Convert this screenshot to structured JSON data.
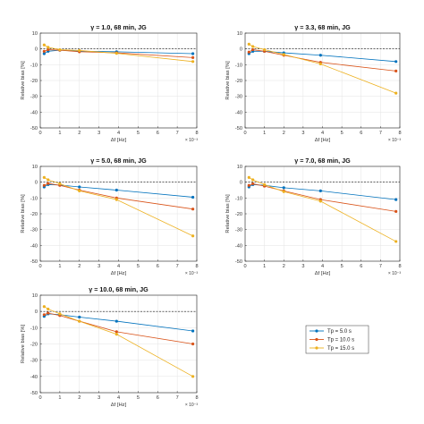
{
  "chart_data": [
    {
      "type": "line",
      "title": "γ = 1.0, 68 min, JG",
      "xlabel": "Δf [Hz]",
      "ylabel": "Relative bias [%]",
      "x_exponent_label": "× 10⁻³",
      "xlim": [
        0,
        8
      ],
      "ylim": [
        -50,
        10
      ],
      "xticks": [
        0,
        1,
        2,
        3,
        4,
        5,
        6,
        7,
        8
      ],
      "yticks": [
        10,
        0,
        -10,
        -20,
        -30,
        -40,
        -50
      ],
      "grid": true,
      "reference_line": 0,
      "x": [
        0.2,
        0.4,
        1.0,
        2.0,
        3.9,
        7.8
      ],
      "series": [
        {
          "name": "Tp = 5.0 s",
          "color": "#0072BD",
          "values": [
            -3.0,
            -1.5,
            -0.8,
            -1.5,
            -1.8,
            -3.0
          ]
        },
        {
          "name": "Tp = 10.0 s",
          "color": "#D95319",
          "values": [
            -1.5,
            -0.5,
            -0.8,
            -1.8,
            -2.5,
            -5.5
          ]
        },
        {
          "name": "Tp = 15.0 s",
          "color": "#EDB120",
          "values": [
            2.5,
            1.0,
            -0.5,
            -1.0,
            -2.8,
            -8.0
          ]
        }
      ]
    },
    {
      "type": "line",
      "title": "γ = 3.3, 68 min, JG",
      "xlabel": "Δf [Hz]",
      "ylabel": "Relative bias [%]",
      "x_exponent_label": "× 10⁻³",
      "xlim": [
        0,
        8
      ],
      "ylim": [
        -50,
        10
      ],
      "xticks": [
        0,
        1,
        2,
        3,
        4,
        5,
        6,
        7,
        8
      ],
      "yticks": [
        10,
        0,
        -10,
        -20,
        -30,
        -40,
        -50
      ],
      "grid": true,
      "reference_line": 0,
      "x": [
        0.2,
        0.4,
        1.0,
        2.0,
        3.9,
        7.8
      ],
      "series": [
        {
          "name": "Tp = 5.0 s",
          "color": "#0072BD",
          "values": [
            -3.0,
            -1.5,
            -1.5,
            -2.5,
            -4.0,
            -8.0
          ]
        },
        {
          "name": "Tp = 10.0 s",
          "color": "#D95319",
          "values": [
            -2.0,
            -0.5,
            -1.5,
            -4.0,
            -8.5,
            -14.0
          ]
        },
        {
          "name": "Tp = 15.0 s",
          "color": "#EDB120",
          "values": [
            3.0,
            1.5,
            -0.5,
            -3.5,
            -9.5,
            -28.0
          ]
        }
      ]
    },
    {
      "type": "line",
      "title": "γ = 5.0, 68 min, JG",
      "xlabel": "Δf [Hz]",
      "ylabel": "Relative bias [%]",
      "x_exponent_label": "× 10⁻³",
      "xlim": [
        0,
        8
      ],
      "ylim": [
        -50,
        10
      ],
      "xticks": [
        0,
        1,
        2,
        3,
        4,
        5,
        6,
        7,
        8
      ],
      "yticks": [
        10,
        0,
        -10,
        -20,
        -30,
        -40,
        -50
      ],
      "grid": true,
      "reference_line": 0,
      "x": [
        0.2,
        0.4,
        1.0,
        2.0,
        3.9,
        7.8
      ],
      "series": [
        {
          "name": "Tp = 5.0 s",
          "color": "#0072BD",
          "values": [
            -3.0,
            -1.5,
            -1.8,
            -3.0,
            -5.0,
            -9.5
          ]
        },
        {
          "name": "Tp = 10.0 s",
          "color": "#D95319",
          "values": [
            -2.0,
            -0.8,
            -2.0,
            -5.0,
            -10.0,
            -17.0
          ]
        },
        {
          "name": "Tp = 15.0 s",
          "color": "#EDB120",
          "values": [
            3.0,
            1.5,
            -1.0,
            -5.5,
            -11.0,
            -34.0
          ]
        }
      ]
    },
    {
      "type": "line",
      "title": "γ = 7.0, 68 min, JG",
      "xlabel": "Δf [Hz]",
      "ylabel": "Relative bias [%]",
      "x_exponent_label": "× 10⁻³",
      "xlim": [
        0,
        8
      ],
      "ylim": [
        -50,
        10
      ],
      "xticks": [
        0,
        1,
        2,
        3,
        4,
        5,
        6,
        7,
        8
      ],
      "yticks": [
        10,
        0,
        -10,
        -20,
        -30,
        -40,
        -50
      ],
      "grid": true,
      "reference_line": 0,
      "x": [
        0.2,
        0.4,
        1.0,
        2.0,
        3.9,
        7.8
      ],
      "series": [
        {
          "name": "Tp = 5.0 s",
          "color": "#0072BD",
          "values": [
            -3.0,
            -1.5,
            -2.0,
            -3.5,
            -5.5,
            -11.0
          ]
        },
        {
          "name": "Tp = 10.0 s",
          "color": "#D95319",
          "values": [
            -2.0,
            -1.0,
            -2.5,
            -5.5,
            -11.0,
            -18.5
          ]
        },
        {
          "name": "Tp = 15.0 s",
          "color": "#EDB120",
          "values": [
            3.0,
            1.5,
            -1.5,
            -6.0,
            -12.0,
            -37.5
          ]
        }
      ]
    },
    {
      "type": "line",
      "title": "γ = 10.0, 68 min, JG",
      "xlabel": "Δf [Hz]",
      "ylabel": "Relative bias [%]",
      "x_exponent_label": "× 10⁻³",
      "xlim": [
        0,
        8
      ],
      "ylim": [
        -50,
        10
      ],
      "xticks": [
        0,
        1,
        2,
        3,
        4,
        5,
        6,
        7,
        8
      ],
      "yticks": [
        10,
        0,
        -10,
        -20,
        -30,
        -40,
        -50
      ],
      "grid": true,
      "reference_line": 0,
      "x": [
        0.2,
        0.4,
        1.0,
        2.0,
        3.9,
        7.8
      ],
      "series": [
        {
          "name": "Tp = 5.0 s",
          "color": "#0072BD",
          "values": [
            -3.0,
            -1.5,
            -2.0,
            -3.5,
            -6.0,
            -12.0
          ]
        },
        {
          "name": "Tp = 10.0 s",
          "color": "#D95319",
          "values": [
            -2.0,
            -1.0,
            -2.5,
            -6.0,
            -12.5,
            -20.0
          ]
        },
        {
          "name": "Tp = 15.0 s",
          "color": "#EDB120",
          "values": [
            3.0,
            1.5,
            -1.5,
            -6.0,
            -14.0,
            -40.0
          ]
        }
      ]
    }
  ],
  "legend": {
    "placement": "separate-panel-bottom-right",
    "entries": [
      {
        "label": "Tp = 5.0 s",
        "color": "#0072BD"
      },
      {
        "label": "Tp = 10.0 s",
        "color": "#D95319"
      },
      {
        "label": "Tp = 15.0 s",
        "color": "#EDB120"
      }
    ]
  }
}
